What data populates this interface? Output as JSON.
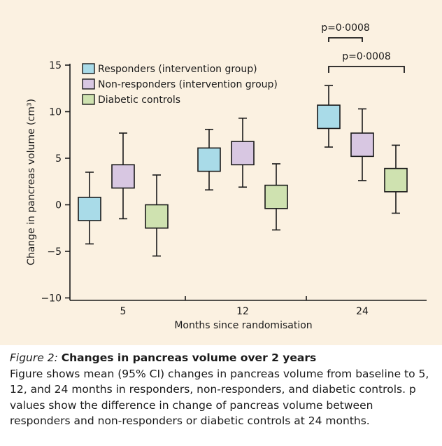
{
  "figure": {
    "label": "Figure 2:",
    "heading": "Changes in pancreas volume over 2 years",
    "description": "Figure shows mean (95% CI) changes in pancreas volume from baseline to 5, 12, and 24 months in responders, non-responders, and diabetic controls. p values show the difference in change of pancreas volume between responders and non-responders or diabetic controls at 24 months."
  },
  "chart_data": {
    "type": "box",
    "xlabel": "Months since randomisation",
    "ylabel": "Change in pancreas volume (cm³)",
    "ylim": [
      -10,
      15
    ],
    "yticks": [
      15,
      10,
      5,
      0,
      -5,
      -10
    ],
    "categories": [
      "5",
      "12",
      "24"
    ],
    "legend_position": "top-left",
    "series": [
      {
        "name": "Responders (intervention group)",
        "color": "#a9dbe8",
        "boxes": [
          {
            "whisker_low": -4.2,
            "box_low": -1.7,
            "box_high": 0.8,
            "whisker_high": 3.5
          },
          {
            "whisker_low": 1.6,
            "box_low": 3.6,
            "box_high": 6.1,
            "whisker_high": 8.1
          },
          {
            "whisker_low": 6.2,
            "box_low": 8.2,
            "box_high": 10.7,
            "whisker_high": 12.8
          }
        ]
      },
      {
        "name": "Non-responders (intervention group)",
        "color": "#d8c7e2",
        "boxes": [
          {
            "whisker_low": -1.5,
            "box_low": 1.8,
            "box_high": 4.3,
            "whisker_high": 7.7
          },
          {
            "whisker_low": 1.9,
            "box_low": 4.3,
            "box_high": 6.8,
            "whisker_high": 9.3
          },
          {
            "whisker_low": 2.6,
            "box_low": 5.2,
            "box_high": 7.7,
            "whisker_high": 10.3
          }
        ]
      },
      {
        "name": "Diabetic controls",
        "color": "#cfe2b0",
        "boxes": [
          {
            "whisker_low": -5.5,
            "box_low": -2.5,
            "box_high": 0.0,
            "whisker_high": 3.2
          },
          {
            "whisker_low": -2.7,
            "box_low": -0.4,
            "box_high": 2.1,
            "whisker_high": 4.4
          },
          {
            "whisker_low": -0.9,
            "box_low": 1.4,
            "box_high": 3.9,
            "whisker_high": 6.4
          }
        ]
      }
    ],
    "annotations": [
      {
        "text": "p=0·0008",
        "from_series": 0,
        "to_series": 1,
        "category": "24"
      },
      {
        "text": "p=0·0008",
        "from_series": 0,
        "to_series": 2,
        "category": "24"
      }
    ]
  }
}
